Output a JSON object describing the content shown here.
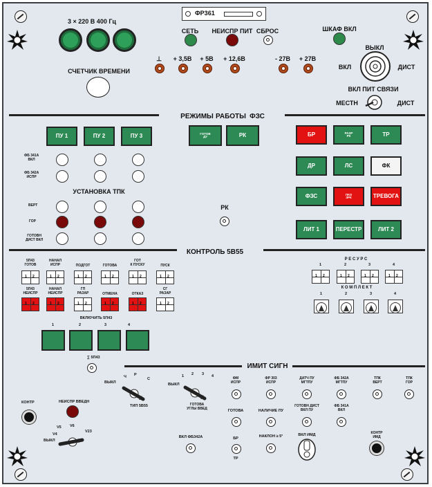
{
  "header": {
    "model": "ФР361",
    "power": "3 × 220 В 400 Гц",
    "counter": "СЧЕТЧИК ВРЕМЕНИ"
  },
  "top_indicators": {
    "set": "СЕТЬ",
    "fault_power": "НЕИСПР ПИТ",
    "reset": "СБРОС",
    "cabinet_on": "ШКАФ ВКЛ"
  },
  "voltages": [
    "⊥",
    "+ 3,5В",
    "+ 5В",
    "+ 12,6В",
    "- 27В",
    "+ 27В"
  ],
  "main_switch": {
    "off": "ВЫКЛ",
    "on": "ВКЛ",
    "dist": "ДИСТ"
  },
  "link_switch": {
    "title": "ВКЛ ПИТ СВЯЗИ",
    "local": "МЕСТН",
    "dist": "ДИСТ"
  },
  "sections": {
    "modes": "РЕЖИМЫ",
    "work": "РАБОТЫ",
    "fzs": "ФЗС",
    "control": "КОНТРОЛЬ 5В55",
    "imit": "ИМИТ СИГН"
  },
  "pu_buttons": [
    "ПУ 1",
    "ПУ 2",
    "ПУ 3"
  ],
  "pu_rows": {
    "fg341a": "ФБ 341А\nВКЛ",
    "fg342a": "ФБ 342А\nИСПР"
  },
  "tpk": {
    "title": "УСТАНОВКА ТПК",
    "vert": "ВЕРТ",
    "gor": "ГОР",
    "gotov": "ГОТОВН\nДИСТ ВКЛ"
  },
  "modes_buttons": {
    "gotov_main": "ГОТОВ",
    "gotov_sub": "ДУ",
    "rk": "РК"
  },
  "rk_toggle": "РК",
  "right_buttons": [
    {
      "label": "БР",
      "sub": ""
    },
    {
      "label": "РАЗР",
      "sub": "РК"
    },
    {
      "label": "ТР",
      "sub": ""
    },
    {
      "label": "ДР",
      "sub": ""
    },
    {
      "label": "ЛС",
      "sub": ""
    },
    {
      "label": "ФК",
      "sub": ""
    },
    {
      "label": "ФЗС",
      "sub": ""
    },
    {
      "label": "ПКО",
      "sub": "ЗРК"
    },
    {
      "label": "ТРЕВОГА",
      "sub": ""
    },
    {
      "label": "ЛИТ 1",
      "sub": ""
    },
    {
      "label": "ПЕРЕСТР",
      "sub": ""
    },
    {
      "label": "ЛИТ 2",
      "sub": ""
    }
  ],
  "control_labels_top": [
    "5П43\nГОТОВ",
    "НАНАЛ\nИСПР",
    "ПОДГОТ",
    "ГОТОВА",
    "ГОТ\nК ПУСКУ",
    "ПУСК"
  ],
  "control_labels_bot": [
    "5П43\nНЕИСПР",
    "НАНАЛ\nНЕИСПР",
    "ГП\nРАЗАР",
    "ОТМЕНА",
    "ОТКАЗ",
    "СГ\nРАЗАР"
  ],
  "ind_nums": [
    "1",
    "2"
  ],
  "resurs": {
    "title": "Р Е С У Р С",
    "komplekt": "К О М П Л Е К Т",
    "nums": [
      "1",
      "2",
      "3",
      "4"
    ]
  },
  "vkl": {
    "title": "ВКЛЮЧИТЬ 5П43",
    "nums": [
      "1",
      "2",
      "3",
      "4"
    ]
  },
  "sp43": "∑ 5П43",
  "type_sel": {
    "title": "ТИП 5В55",
    "off": "ВЫКЛ",
    "ch": "Ч",
    "r": "Р",
    "s": "С"
  },
  "angle_sel": {
    "title": "ГОТОВА\nУГЛЫ ВВЕД",
    "off": "ВЫКЛ",
    "nums": [
      "1",
      "2",
      "3",
      "4"
    ]
  },
  "kontr": "КОНТР",
  "fault_vvedn": "НЕИСПР ВВЕДН",
  "v_sel": {
    "v5": "V5",
    "v4": "V4",
    "v6": "V6",
    "v23": "V23",
    "off": "ВЫКЛ"
  },
  "vkl_fb": "ВКЛ ФБ342А",
  "imit": {
    "fm_ispr": "ФМ\nИСПР",
    "fr_ispr": "ФР 303\nИСПР",
    "dat_pu": "ДАТЧ ПУ\nМГТПУ",
    "fb342": "ФБ 342А\nМГТПУ",
    "tpk_vert": "ТПК\nВЕРТ",
    "tpk_gor": "ТПК\nГОР",
    "gotova": "ГОТОВА",
    "nalich": "НАЛИЧИЕ ПУ",
    "gotovn": "ГОТОВН ДИСТ\nВКЛ ПУ",
    "fb341": "ФБ 341А\nВКЛ",
    "br": "БР",
    "tr": "ТР",
    "naklon": "НАКЛОН ≥ 5°",
    "vkl_imd": "ВКЛ ИМД",
    "kontr_imd": "КОНТР\nИМД"
  }
}
